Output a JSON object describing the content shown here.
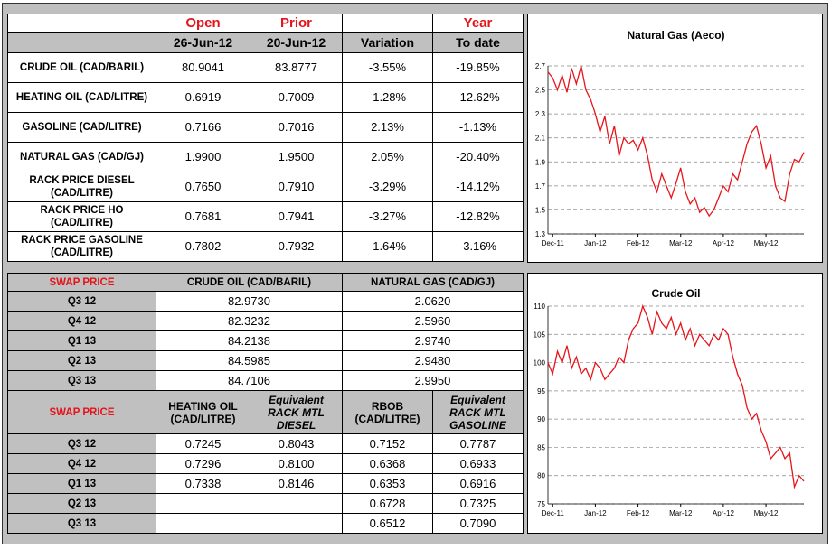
{
  "market_table": {
    "columns": [
      {
        "top": "Open",
        "bottom": "26-Jun-12"
      },
      {
        "top": "Prior",
        "bottom": "20-Jun-12"
      },
      {
        "bottom": "Variation"
      },
      {
        "top": "Year",
        "bottom": "To date"
      }
    ],
    "rows": [
      {
        "label": "CRUDE OIL (CAD/BARIL)",
        "cells": [
          "80.9041",
          "83.8777",
          "-3.55%",
          "-19.85%"
        ]
      },
      {
        "label": "HEATING OIL (CAD/LITRE)",
        "cells": [
          "0.6919",
          "0.7009",
          "-1.28%",
          "-12.62%"
        ]
      },
      {
        "label": "GASOLINE (CAD/LITRE)",
        "cells": [
          "0.7166",
          "0.7016",
          "2.13%",
          "-1.13%"
        ]
      },
      {
        "label": "NATURAL GAS (CAD/GJ)",
        "cells": [
          "1.9900",
          "1.9500",
          "2.05%",
          "-20.40%"
        ]
      },
      {
        "label": "RACK PRICE DIESEL (CAD/LITRE)",
        "cells": [
          "0.7650",
          "0.7910",
          "-3.29%",
          "-14.12%"
        ]
      },
      {
        "label": "RACK PRICE HO (CAD/LITRE)",
        "cells": [
          "0.7681",
          "0.7941",
          "-3.27%",
          "-12.82%"
        ]
      },
      {
        "label": "RACK PRICE GASOLINE (CAD/LITRE)",
        "cells": [
          "0.7802",
          "0.7932",
          "-1.64%",
          "-3.16%"
        ]
      }
    ]
  },
  "swap_table_1": {
    "title": "SWAP PRICE",
    "columns": [
      "CRUDE OIL (CAD/BARIL)",
      "NATURAL GAS (CAD/GJ)"
    ],
    "rows": [
      {
        "label": "Q3 12",
        "cells": [
          "82.9730",
          "2.0620"
        ]
      },
      {
        "label": "Q4 12",
        "cells": [
          "82.3232",
          "2.5960"
        ]
      },
      {
        "label": "Q1 13",
        "cells": [
          "84.2138",
          "2.9740"
        ]
      },
      {
        "label": "Q2 13",
        "cells": [
          "84.5985",
          "2.9480"
        ]
      },
      {
        "label": "Q3 13",
        "cells": [
          "84.7106",
          "2.9950"
        ]
      }
    ]
  },
  "swap_table_2": {
    "title": "SWAP PRICE",
    "columns": [
      "HEATING OIL (CAD/LITRE)",
      "Equivalent RACK MTL DIESEL",
      "RBOB (CAD/LITRE)",
      "Equivalent RACK MTL GASOLINE"
    ],
    "rows": [
      {
        "label": "Q3 12",
        "cells": [
          "0.7245",
          "0.8043",
          "0.7152",
          "0.7787"
        ]
      },
      {
        "label": "Q4 12",
        "cells": [
          "0.7296",
          "0.8100",
          "0.6368",
          "0.6933"
        ]
      },
      {
        "label": "Q1 13",
        "cells": [
          "0.7338",
          "0.8146",
          "0.6353",
          "0.6916"
        ]
      },
      {
        "label": "Q2 13",
        "cells": [
          null,
          null,
          "0.6728",
          "0.7325"
        ]
      },
      {
        "label": "Q3 13",
        "cells": [
          null,
          null,
          "0.6512",
          "0.7090"
        ]
      }
    ]
  },
  "chart_data": [
    {
      "type": "line",
      "title": "Natural Gas (Aeco)",
      "color": "#e8141b",
      "grid": true,
      "categories": [
        null,
        "Dec-11",
        null,
        null,
        null,
        null,
        null,
        null,
        null,
        null,
        "Jan-12",
        null,
        null,
        null,
        null,
        null,
        null,
        null,
        null,
        "Feb-12",
        null,
        null,
        null,
        null,
        null,
        null,
        null,
        null,
        "Mar-12",
        null,
        null,
        null,
        null,
        null,
        null,
        null,
        null,
        "Apr-12",
        null,
        null,
        null,
        null,
        null,
        null,
        null,
        null,
        "May-12",
        null,
        null,
        null,
        null,
        null,
        null,
        null,
        null
      ],
      "values": [
        2.65,
        2.6,
        2.5,
        2.62,
        2.48,
        2.68,
        2.55,
        2.7,
        2.5,
        2.42,
        2.3,
        2.15,
        2.28,
        2.05,
        2.2,
        1.95,
        2.1,
        2.05,
        2.08,
        2.0,
        2.1,
        1.95,
        1.75,
        1.65,
        1.8,
        1.7,
        1.6,
        1.72,
        1.85,
        1.65,
        1.55,
        1.6,
        1.48,
        1.52,
        1.45,
        1.5,
        1.6,
        1.7,
        1.65,
        1.8,
        1.75,
        1.9,
        2.05,
        2.15,
        2.2,
        2.05,
        1.85,
        1.95,
        1.7,
        1.6,
        1.57,
        1.8,
        1.92,
        1.9,
        1.98
      ],
      "ylim": [
        1.3,
        2.7
      ],
      "yticks": [
        1.3,
        1.5,
        1.7,
        1.9,
        2.1,
        2.3,
        2.5,
        2.7
      ]
    },
    {
      "type": "line",
      "title": "Crude Oil",
      "color": "#e8141b",
      "grid": true,
      "categories": [
        null,
        "Dec-11",
        null,
        null,
        null,
        null,
        null,
        null,
        null,
        null,
        "Jan-12",
        null,
        null,
        null,
        null,
        null,
        null,
        null,
        null,
        "Feb-12",
        null,
        null,
        null,
        null,
        null,
        null,
        null,
        null,
        "Mar-12",
        null,
        null,
        null,
        null,
        null,
        null,
        null,
        null,
        "Apr-12",
        null,
        null,
        null,
        null,
        null,
        null,
        null,
        null,
        "May-12",
        null,
        null,
        null,
        null,
        null,
        null,
        null,
        null
      ],
      "values": [
        100,
        98,
        102,
        100,
        103,
        99,
        101,
        98,
        99,
        97,
        100,
        99,
        97,
        98,
        99,
        101,
        100,
        104,
        106,
        107,
        110,
        108,
        105,
        109,
        107,
        106,
        108,
        105,
        107,
        104,
        106,
        103,
        105,
        104,
        103,
        105,
        104,
        106,
        105,
        101,
        98,
        96,
        92,
        90,
        91,
        88,
        86,
        83,
        84,
        85,
        83,
        84,
        78,
        80,
        79
      ],
      "ylim": [
        75,
        110
      ],
      "yticks": [
        75,
        80,
        85,
        90,
        95,
        100,
        105,
        110
      ]
    }
  ]
}
